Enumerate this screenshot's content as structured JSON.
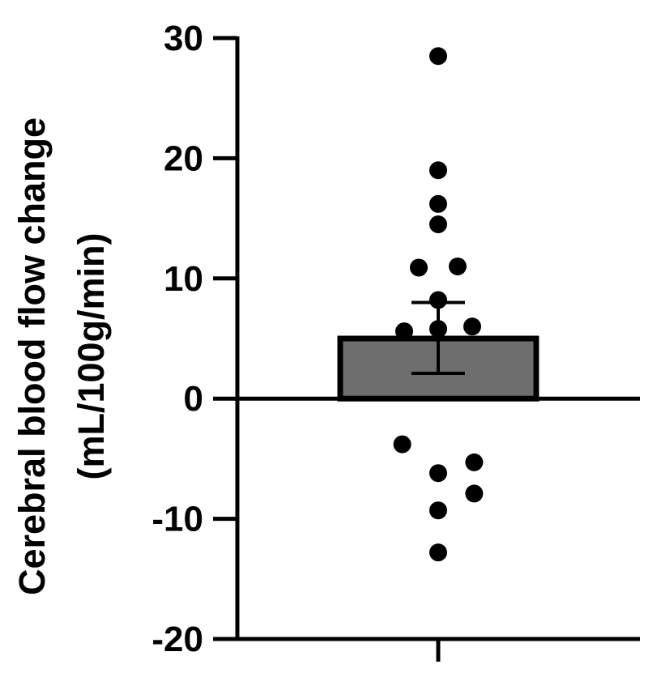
{
  "chart_data": {
    "type": "bar",
    "title": "",
    "xlabel": "",
    "ylabel": [
      "Cerebral blood flow change",
      "(mL/100g/min)"
    ],
    "ylim": [
      -20,
      30
    ],
    "yticks": [
      30,
      20,
      10,
      0,
      -10,
      -20
    ],
    "ytick_labels": [
      "30",
      "20",
      "10",
      "0",
      "-10",
      "-20"
    ],
    "grid": false,
    "categories": [
      ""
    ],
    "values": [
      5.0
    ],
    "error": {
      "upper": 8.0,
      "lower": 2.1
    },
    "bar_color": "#6e6e6e",
    "points": [
      {
        "y": 28.5,
        "xoff": 0.0
      },
      {
        "y": 19.0,
        "xoff": 0.0
      },
      {
        "y": 16.2,
        "xoff": 0.0
      },
      {
        "y": 14.5,
        "xoff": 0.0
      },
      {
        "y": 10.9,
        "xoff": -0.2
      },
      {
        "y": 11.0,
        "xoff": 0.2
      },
      {
        "y": 8.2,
        "xoff": 0.0
      },
      {
        "y": 5.6,
        "xoff": -0.35
      },
      {
        "y": 5.8,
        "xoff": 0.0
      },
      {
        "y": 6.0,
        "xoff": 0.35
      },
      {
        "y": -3.8,
        "xoff": -0.37
      },
      {
        "y": -5.3,
        "xoff": 0.37
      },
      {
        "y": -6.2,
        "xoff": 0.0
      },
      {
        "y": -7.9,
        "xoff": 0.37
      },
      {
        "y": -9.3,
        "xoff": 0.0
      },
      {
        "y": -12.8,
        "xoff": 0.0
      }
    ]
  }
}
